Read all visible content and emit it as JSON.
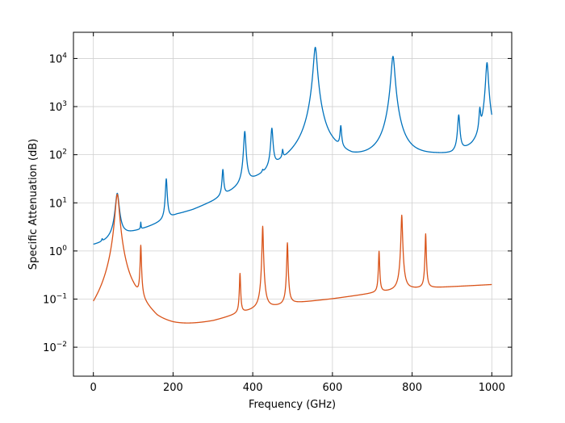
{
  "chart_data": {
    "type": "line",
    "xlabel": "Frequency (GHz)",
    "ylabel": "Specific Attenuation (dB)",
    "xlim": [
      -50,
      1050
    ],
    "ylim": [
      0.0025,
      35000
    ],
    "yscale": "log",
    "grid": true,
    "x_ticks": [
      0,
      200,
      400,
      600,
      800,
      1000
    ],
    "x_tick_labels": [
      "0",
      "200",
      "400",
      "600",
      "800",
      "1000"
    ],
    "y_ticks": [
      0.01,
      0.1,
      1,
      10,
      100,
      1000,
      10000
    ],
    "y_tick_labels": [
      {
        "base": "10",
        "exp": "−2"
      },
      {
        "base": "10",
        "exp": "−1"
      },
      {
        "base": "10",
        "exp": "0"
      },
      {
        "base": "10",
        "exp": "1"
      },
      {
        "base": "10",
        "exp": "2"
      },
      {
        "base": "10",
        "exp": "3"
      },
      {
        "base": "10",
        "exp": "4"
      }
    ],
    "series": [
      {
        "color": "#0072bd",
        "background": [
          [
            0,
            0.006
          ],
          [
            10,
            0.012
          ],
          [
            20,
            0.03
          ],
          [
            40,
            0.1
          ],
          [
            80,
            0.45
          ],
          [
            100,
            0.6
          ],
          [
            140,
            1.0
          ],
          [
            170,
            1.5
          ],
          [
            210,
            2.7
          ],
          [
            250,
            3.4
          ],
          [
            300,
            5.5
          ],
          [
            340,
            9
          ],
          [
            400,
            18
          ],
          [
            430,
            24
          ],
          [
            470,
            42
          ],
          [
            500,
            55
          ],
          [
            540,
            75
          ],
          [
            600,
            85
          ],
          [
            650,
            65
          ],
          [
            700,
            70
          ],
          [
            760,
            75
          ],
          [
            800,
            80
          ],
          [
            860,
            88
          ],
          [
            900,
            90
          ],
          [
            950,
            120
          ],
          [
            1000,
            200
          ]
        ],
        "peaks": [
          [
            22,
            0.18,
            1.2
          ],
          [
            60,
            14,
            4.5
          ],
          [
            119,
            1.1,
            0.8
          ],
          [
            183,
            27,
            2
          ],
          [
            325,
            35,
            2
          ],
          [
            380,
            280,
            2.5
          ],
          [
            425,
            5,
            1.5
          ],
          [
            448,
            300,
            2.5
          ],
          [
            475,
            40,
            1.5
          ],
          [
            557,
            17000,
            4
          ],
          [
            621,
            250,
            2
          ],
          [
            752,
            11000,
            4
          ],
          [
            917,
            550,
            2.5
          ],
          [
            970,
            600,
            2
          ],
          [
            988,
            8000,
            3
          ]
        ]
      },
      {
        "color": "#d95319",
        "background": [
          [
            0,
            0.007
          ],
          [
            40,
            0.02
          ],
          [
            100,
            0.04
          ],
          [
            160,
            0.016
          ],
          [
            200,
            0.018
          ],
          [
            300,
            0.03
          ],
          [
            360,
            0.045
          ],
          [
            400,
            0.055
          ],
          [
            470,
            0.07
          ],
          [
            500,
            0.08
          ],
          [
            600,
            0.1
          ],
          [
            700,
            0.13
          ],
          [
            800,
            0.16
          ],
          [
            900,
            0.18
          ],
          [
            1000,
            0.2
          ]
        ],
        "peaks": [
          [
            60,
            15,
            4.5
          ],
          [
            119,
            1.2,
            1.3
          ],
          [
            368,
            0.29,
            1.3
          ],
          [
            425,
            3.2,
            1.3
          ],
          [
            487,
            1.4,
            1.3
          ],
          [
            717,
            0.85,
            1.3
          ],
          [
            774,
            5.4,
            1.5
          ],
          [
            834,
            2.1,
            1.2
          ]
        ]
      }
    ]
  }
}
